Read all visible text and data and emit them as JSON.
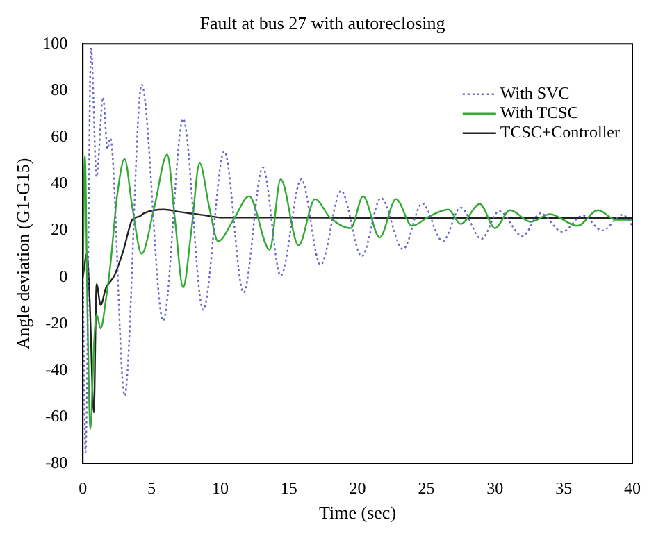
{
  "chart_data": {
    "type": "line",
    "title": "Fault at bus 27 with autoreclosing",
    "xlabel": "Time (sec)",
    "ylabel": "Angle deviation (G1-G15)",
    "xlim": [
      0,
      40
    ],
    "xticks": [
      0,
      5,
      10,
      15,
      20,
      25,
      30,
      35,
      40
    ],
    "ylim": [
      -80,
      100
    ],
    "yticks": [
      -80,
      -60,
      -40,
      -20,
      0,
      20,
      40,
      60,
      80,
      100
    ],
    "grid": false,
    "legend": "top right",
    "marker": "none",
    "series": [
      {
        "name": "With SVC",
        "color": "#6666cc",
        "line_style": "dotted",
        "x": [
          0,
          0.2,
          0.6,
          1.0,
          1.47,
          1.8,
          2.0,
          3.04,
          4.28,
          5.85,
          7.3,
          8.76,
          10.3,
          11.7,
          13.1,
          14.4,
          15.9,
          17.3,
          18.8,
          20.3,
          21.7,
          23.3,
          24.7,
          26.2,
          27.5,
          29,
          30.3,
          32,
          33.3,
          34.9,
          36.4,
          37.8,
          39.3,
          40
        ],
        "values": [
          0,
          -75,
          98,
          43,
          77,
          55,
          59.6,
          -50.7,
          82.5,
          -18.6,
          67.8,
          -14,
          54,
          -6.6,
          47,
          0.7,
          42,
          5.3,
          37,
          9,
          34,
          12,
          31.6,
          15.4,
          29.8,
          16.4,
          28.3,
          17.6,
          27.4,
          19.5,
          26.5,
          20,
          26.8,
          22
        ]
      },
      {
        "name": "With TCSC",
        "color": "#33aa33",
        "line_style": "solid",
        "x": [
          0,
          0.15,
          0.35,
          0.55,
          0.8,
          1.0,
          1.3,
          1.67,
          2.0,
          2.5,
          3.04,
          3.6,
          4.28,
          5.2,
          6.14,
          6.7,
          7.3,
          7.9,
          8.5,
          9.2,
          9.84,
          11,
          12.1,
          13.6,
          14.4,
          15.7,
          16.9,
          18,
          19.5,
          20.4,
          21.6,
          22.8,
          23.96,
          25.2,
          26.6,
          27.5,
          28.9,
          30,
          31.1,
          32.6,
          34,
          36,
          37.5,
          38.8,
          40
        ],
        "values": [
          0,
          52,
          -20,
          -65,
          -30,
          -16,
          -22,
          -10,
          5,
          35,
          50.7,
          30,
          10,
          30,
          52.6,
          25,
          -4.4,
          20,
          48.9,
          30,
          15.4,
          25,
          34.7,
          11.8,
          42,
          13.6,
          33.5,
          25.5,
          21,
          34.7,
          17,
          33.5,
          22,
          26,
          29,
          22.8,
          31.4,
          21,
          28.7,
          23.7,
          27,
          22,
          28.7,
          24.6,
          24.6
        ]
      },
      {
        "name": "TCSC+Controller",
        "color": "#222222",
        "line_style": "solid",
        "x": [
          0,
          0.3,
          0.5,
          0.8,
          1.0,
          1.3,
          1.67,
          2.3,
          2.97,
          3.6,
          4.1,
          4.45,
          5.9,
          7,
          8.9,
          10,
          15,
          20,
          25,
          30,
          35,
          40
        ],
        "values": [
          0,
          10,
          -10,
          -58,
          -3,
          -12,
          -4.8,
          0.7,
          11.8,
          24.6,
          26,
          27.4,
          29,
          28,
          26.5,
          25.6,
          25.6,
          25.4,
          25.4,
          25.4,
          25.4,
          25.4
        ]
      }
    ]
  }
}
